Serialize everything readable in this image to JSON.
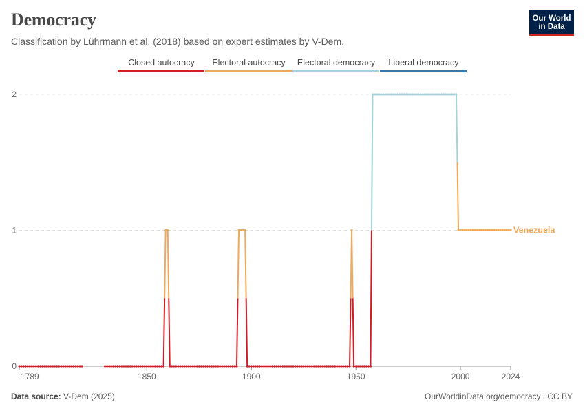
{
  "header": {
    "title": "Democracy",
    "subtitle": "Classification by Lührmann et al. (2018) based on expert estimates by V-Dem."
  },
  "logo": {
    "line1": "Our World",
    "line2": "in Data"
  },
  "footer": {
    "source_label": "Data source:",
    "source_value": "V-Dem (2025)",
    "credit": "OurWorldinData.org/democracy | CC BY"
  },
  "colors": {
    "closed_autocracy": "#d01d27",
    "electoral_autocracy": "#f0a95b",
    "electoral_democracy": "#a5d3dc",
    "liberal_democracy": "#3579ad"
  },
  "chart_data": {
    "type": "line",
    "legend": [
      "Closed autocracy",
      "Electoral autocracy",
      "Electoral democracy",
      "Liberal democracy"
    ],
    "legend_placement": "top",
    "x_ticks": [
      1789,
      1850,
      1900,
      1950,
      2000,
      2024
    ],
    "y_ticks": [
      0,
      1,
      2
    ],
    "xlim": [
      1789,
      2024
    ],
    "ylim": [
      0,
      2
    ],
    "grid": "horizontal dashed",
    "series": [
      {
        "name": "Venezuela",
        "segments": [
          {
            "from": 1789,
            "to": 1819,
            "value": 0
          },
          {
            "from": 1830,
            "to": 1858,
            "value": 0
          },
          {
            "from": 1859,
            "to": 1860,
            "value": 1
          },
          {
            "from": 1861,
            "to": 1893,
            "value": 0
          },
          {
            "from": 1894,
            "to": 1897,
            "value": 1
          },
          {
            "from": 1898,
            "to": 1947,
            "value": 0
          },
          {
            "from": 1948,
            "to": 1948,
            "value": 1
          },
          {
            "from": 1949,
            "to": 1957,
            "value": 0
          },
          {
            "from": 1958,
            "to": 1998,
            "value": 2
          },
          {
            "from": 1999,
            "to": 2024,
            "value": 1
          }
        ]
      }
    ]
  }
}
